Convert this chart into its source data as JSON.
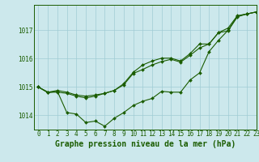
{
  "background_color": "#cce8ec",
  "grid_color": "#a0ccd4",
  "line_color": "#1a5c00",
  "xlabel": "Graphe pression niveau de la mer (hPa)",
  "ylim": [
    1013.5,
    1017.9
  ],
  "xlim": [
    -0.5,
    23
  ],
  "yticks": [
    1014,
    1015,
    1016,
    1017
  ],
  "xticks": [
    0,
    1,
    2,
    3,
    4,
    5,
    6,
    7,
    8,
    9,
    10,
    11,
    12,
    13,
    14,
    15,
    16,
    17,
    18,
    19,
    20,
    21,
    22,
    23
  ],
  "line1_x": [
    0,
    1,
    2,
    3,
    4,
    5,
    6,
    7,
    8,
    9,
    10,
    11,
    12,
    13,
    14,
    15,
    16,
    17,
    18,
    19,
    20,
    21,
    22,
    23
  ],
  "line1_y": [
    1015.0,
    1014.8,
    1014.85,
    1014.1,
    1014.05,
    1013.75,
    1013.8,
    1013.62,
    1013.9,
    1014.1,
    1014.35,
    1014.5,
    1014.6,
    1014.85,
    1014.82,
    1014.82,
    1015.25,
    1015.5,
    1016.25,
    1016.65,
    1017.0,
    1017.5,
    1017.58,
    1017.65
  ],
  "line2_x": [
    0,
    1,
    2,
    3,
    4,
    5,
    6,
    7,
    8,
    9,
    10,
    11,
    12,
    13,
    14,
    15,
    16,
    17,
    18,
    19,
    20,
    21,
    22,
    23
  ],
  "line2_y": [
    1015.0,
    1014.82,
    1014.82,
    1014.78,
    1014.68,
    1014.62,
    1014.68,
    1014.78,
    1014.88,
    1015.08,
    1015.48,
    1015.62,
    1015.78,
    1015.9,
    1015.98,
    1015.88,
    1016.12,
    1016.38,
    1016.52,
    1016.92,
    1016.98,
    1017.48,
    1017.58,
    1017.65
  ],
  "line3_x": [
    0,
    1,
    2,
    3,
    4,
    5,
    6,
    7,
    8,
    9,
    10,
    11,
    12,
    13,
    14,
    15,
    16,
    17,
    18,
    19,
    20,
    21,
    22,
    23
  ],
  "line3_y": [
    1015.0,
    1014.82,
    1014.88,
    1014.82,
    1014.72,
    1014.68,
    1014.72,
    1014.78,
    1014.88,
    1015.12,
    1015.52,
    1015.78,
    1015.92,
    1016.02,
    1016.02,
    1015.92,
    1016.18,
    1016.52,
    1016.52,
    1016.92,
    1017.08,
    1017.52,
    1017.58,
    1017.65
  ],
  "marker": "D",
  "markersize": 2.0,
  "linewidth": 0.8,
  "xlabel_fontsize": 7,
  "tick_fontsize": 5.5
}
